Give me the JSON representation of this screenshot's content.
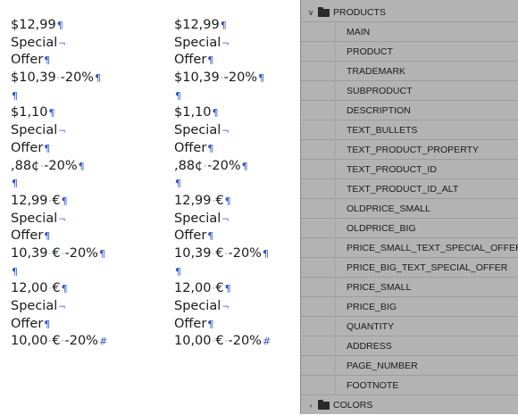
{
  "document": {
    "columns": [
      {
        "lines": [
          {
            "text": "$12,99",
            "mark": "¶"
          },
          {
            "text": "Special",
            "mark": "¬"
          },
          {
            "text": "Offer",
            "mark": "¶"
          },
          {
            "text": "$10,39",
            "mid": "·",
            "tail": "-20%",
            "mark": "¶"
          },
          {
            "text": "",
            "mark": "¶"
          },
          {
            "text": "$1,10",
            "mark": "¶"
          },
          {
            "text": "Special",
            "mark": "¬"
          },
          {
            "text": "Offer",
            "mark": "¶"
          },
          {
            "text": ",88¢",
            "mid": "·",
            "tail": "-20%",
            "mark": "¶"
          },
          {
            "text": "",
            "mark": "¶"
          },
          {
            "text": "12,99",
            "mid": "·",
            "tail": "€",
            "mark": "¶"
          },
          {
            "text": "Special",
            "mark": "¬"
          },
          {
            "text": "Offer",
            "mark": "¶"
          },
          {
            "text": "10,39",
            "mid": "·",
            "tail": "€",
            "mid2": "·",
            "tail2": "-20%",
            "mark": "¶"
          },
          {
            "text": "",
            "mark": "¶"
          },
          {
            "text": "12,00",
            "mid": "·",
            "tail": "€",
            "mark": "¶"
          },
          {
            "text": "Special",
            "mark": "¬"
          },
          {
            "text": "Offer",
            "mark": "¶"
          },
          {
            "text": "10,00",
            "mid": "·",
            "tail": "€",
            "mid2": "·",
            "tail2": "-20%",
            "mark": "#"
          }
        ]
      },
      {
        "lines": [
          {
            "text": "$12,99",
            "mark": "¶"
          },
          {
            "text": "Special",
            "mark": "¬"
          },
          {
            "text": "Offer",
            "mark": "¶"
          },
          {
            "text": "$10,39",
            "mid": "·",
            "tail": "-20%",
            "mark": "¶"
          },
          {
            "text": "",
            "mark": "¶"
          },
          {
            "text": "$1,10",
            "mark": "¶"
          },
          {
            "text": "Special",
            "mark": "¬"
          },
          {
            "text": "Offer",
            "mark": "¶"
          },
          {
            "text": ",88¢",
            "mid": "·",
            "tail": "-20%",
            "mark": "¶"
          },
          {
            "text": "",
            "mark": "¶"
          },
          {
            "text": "12,99",
            "mid": "·",
            "tail": "€",
            "mark": "¶"
          },
          {
            "text": "Special",
            "mark": "¬"
          },
          {
            "text": "Offer",
            "mark": "¶"
          },
          {
            "text": "10,39",
            "mid": "·",
            "tail": "€",
            "mid2": "·",
            "tail2": "-20%",
            "mark": "¶"
          },
          {
            "text": "",
            "mark": "¶"
          },
          {
            "text": "12,00",
            "mid": "·",
            "tail": "€",
            "mark": "¶"
          },
          {
            "text": "Special",
            "mark": "¬"
          },
          {
            "text": "Offer",
            "mark": "¶"
          },
          {
            "text": "10,00",
            "mid": "·",
            "tail": "€",
            "mid2": "·",
            "tail2": "-20%",
            "mark": "#"
          }
        ]
      }
    ]
  },
  "panel": {
    "products_group": {
      "label": "PRODUCTS",
      "expanded_icon": "chevron-down-icon",
      "folder_icon": "folder-icon",
      "items": [
        "MAIN",
        "PRODUCT",
        "TRADEMARK",
        "SUBPRODUCT",
        "DESCRIPTION",
        "TEXT_BULLETS",
        "TEXT_PRODUCT_PROPERTY",
        "TEXT_PRODUCT_ID",
        "TEXT_PRODUCT_ID_ALT",
        "OLDPRICE_SMALL",
        "OLDPRICE_BIG",
        "PRICE_SMALL_TEXT_SPECIAL_OFFER",
        "PRICE_BIG_TEXT_SPECIAL_OFFER",
        "PRICE_SMALL",
        "PRICE_BIG",
        "QUANTITY",
        "ADDRESS",
        "PAGE_NUMBER",
        "FOOTNOTE"
      ]
    },
    "colors_group": {
      "label": "COLORS",
      "collapsed_icon": "chevron-right-icon",
      "folder_icon": "folder-icon"
    }
  },
  "colors": {
    "panel_bg": "#b3b3b3",
    "hidden_char": "#2e55c6",
    "text": "#1a1a1a"
  }
}
